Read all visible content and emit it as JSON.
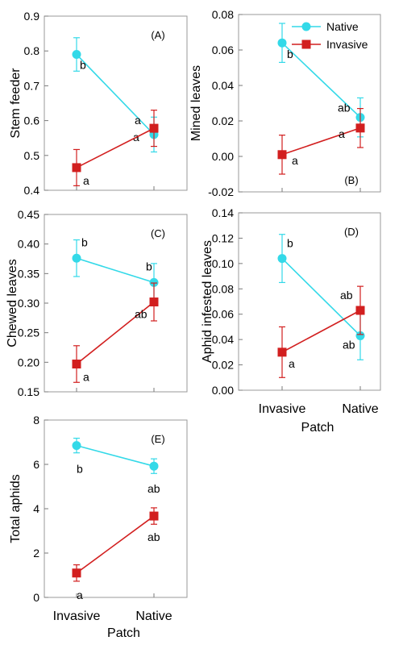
{
  "figure": {
    "colors": {
      "native": "#33d9e8",
      "invasive": "#d21f1f"
    },
    "legend": {
      "labels": [
        "Native",
        "Invasive"
      ],
      "placement": "top-right of panel B"
    },
    "xlabel": "Patch"
  },
  "chart_data": [
    {
      "type": "line",
      "panel_label": "(A)",
      "ylabel": "Stem feeder",
      "categories": [
        "Invasive",
        "Native"
      ],
      "ylim": [
        0.4,
        0.9
      ],
      "yticks": [
        "0.4",
        "0.5",
        "0.6",
        "0.7",
        "0.8",
        "0.9"
      ],
      "ytick_values": [
        0.4,
        0.5,
        0.6,
        0.7,
        0.8,
        0.9
      ],
      "show_xticklabels": false,
      "xlabel": "",
      "series": [
        {
          "name": "Native",
          "values": [
            0.79,
            0.56
          ],
          "errors": [
            0.048,
            0.05
          ],
          "letters": [
            "b",
            "a"
          ]
        },
        {
          "name": "Invasive",
          "values": [
            0.465,
            0.578
          ],
          "errors": [
            0.052,
            0.052
          ],
          "letters": [
            "a",
            "a"
          ]
        }
      ]
    },
    {
      "type": "line",
      "panel_label": "(B)",
      "ylabel": "Mined leaves",
      "categories": [
        "Invasive",
        "Native"
      ],
      "ylim": [
        -0.02,
        0.08
      ],
      "yticks": [
        "-0.02",
        "0.00",
        "0.02",
        "0.04",
        "0.06",
        "0.08"
      ],
      "ytick_values": [
        -0.02,
        0.0,
        0.02,
        0.04,
        0.06,
        0.08
      ],
      "show_xticklabels": false,
      "xlabel": "",
      "legend": true,
      "series": [
        {
          "name": "Native",
          "values": [
            0.064,
            0.022
          ],
          "errors": [
            0.011,
            0.011
          ],
          "letters": [
            "b",
            "ab"
          ]
        },
        {
          "name": "Invasive",
          "values": [
            0.001,
            0.016
          ],
          "errors": [
            0.011,
            0.011
          ],
          "letters": [
            "a",
            "a"
          ]
        }
      ]
    },
    {
      "type": "line",
      "panel_label": "(C)",
      "ylabel": "Chewed leaves",
      "categories": [
        "Invasive",
        "Native"
      ],
      "ylim": [
        0.15,
        0.45
      ],
      "yticks": [
        "0.15",
        "0.20",
        "0.25",
        "0.30",
        "0.35",
        "0.40",
        "0.45"
      ],
      "ytick_values": [
        0.15,
        0.2,
        0.25,
        0.3,
        0.35,
        0.4,
        0.45
      ],
      "show_xticklabels": false,
      "xlabel": "",
      "series": [
        {
          "name": "Native",
          "values": [
            0.376,
            0.335
          ],
          "errors": [
            0.031,
            0.032
          ],
          "letters": [
            "b",
            "b"
          ]
        },
        {
          "name": "Invasive",
          "values": [
            0.197,
            0.302
          ],
          "errors": [
            0.031,
            0.032
          ],
          "letters": [
            "a",
            "ab"
          ]
        }
      ]
    },
    {
      "type": "line",
      "panel_label": "(D)",
      "ylabel": "Aphid infested leaves",
      "categories": [
        "Invasive",
        "Native"
      ],
      "ylim": [
        0.0,
        0.14
      ],
      "yticks": [
        "0.00",
        "0.02",
        "0.04",
        "0.06",
        "0.08",
        "0.10",
        "0.12",
        "0.14"
      ],
      "ytick_values": [
        0.0,
        0.02,
        0.04,
        0.06,
        0.08,
        0.1,
        0.12,
        0.14
      ],
      "show_xticklabels": true,
      "xlabel": "Patch",
      "series": [
        {
          "name": "Native",
          "values": [
            0.104,
            0.043
          ],
          "errors": [
            0.019,
            0.019
          ],
          "letters": [
            "b",
            "ab"
          ]
        },
        {
          "name": "Invasive",
          "values": [
            0.03,
            0.063
          ],
          "errors": [
            0.02,
            0.019
          ],
          "letters": [
            "a",
            "ab"
          ]
        }
      ]
    },
    {
      "type": "line",
      "panel_label": "(E)",
      "ylabel": "Total aphids",
      "categories": [
        "Invasive",
        "Native"
      ],
      "ylim": [
        0,
        8
      ],
      "yticks": [
        "0",
        "2",
        "4",
        "6",
        "8"
      ],
      "ytick_values": [
        0,
        2,
        4,
        6,
        8
      ],
      "show_xticklabels": true,
      "xlabel": "Patch",
      "series": [
        {
          "name": "Native",
          "values": [
            6.85,
            5.92
          ],
          "errors": [
            0.33,
            0.33
          ],
          "letters": [
            "b",
            "ab"
          ]
        },
        {
          "name": "Invasive",
          "values": [
            1.1,
            3.67
          ],
          "errors": [
            0.37,
            0.37
          ],
          "letters": [
            "a",
            "ab"
          ]
        }
      ]
    }
  ]
}
